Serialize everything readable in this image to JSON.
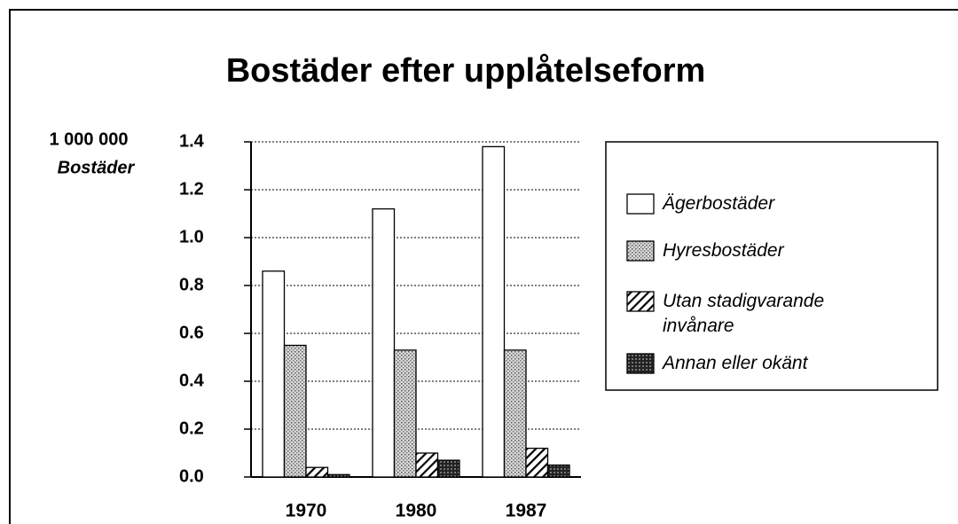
{
  "chart_data": {
    "type": "bar",
    "title": "Bostäder efter upplåtelseform",
    "y_label": [
      "1 000 000",
      "Bostäder"
    ],
    "categories": [
      "1970",
      "1980",
      "1987"
    ],
    "series": [
      {
        "name": "Ägerbostäder",
        "color": "#ffffff",
        "values": [
          0.86,
          1.12,
          1.38
        ]
      },
      {
        "name": "Hyresbostäder",
        "color": "#b8b8b8",
        "values": [
          0.55,
          0.53,
          0.53
        ]
      },
      {
        "name": "Utan stadigvarande invånare",
        "color": "#ffffff",
        "values": [
          0.04,
          0.1,
          0.12
        ]
      },
      {
        "name": "Annan eller okänt",
        "color": "#333333",
        "values": [
          0.01,
          0.07,
          0.05
        ]
      }
    ],
    "ylim": [
      0,
      1.4
    ],
    "yticks": [
      {
        "value": 0,
        "label": "0.0"
      },
      0.2,
      0.4,
      0.6,
      0.8,
      {
        "value": 1,
        "label": "1.0"
      },
      1.2,
      1.4
    ],
    "grid": true,
    "legend": "right"
  }
}
